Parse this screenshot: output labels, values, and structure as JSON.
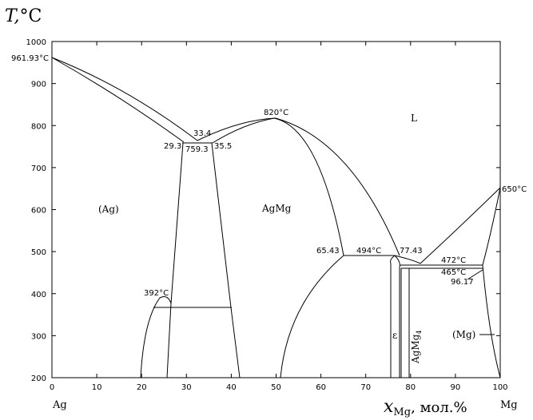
{
  "title": {
    "y_axis_title_main": "T,",
    "y_axis_title_unit": "°C",
    "x_axis_title_var": "x",
    "x_axis_title_sub": "Mg",
    "x_axis_title_unit": ", мол.%",
    "x_left_element": "Ag",
    "x_right_element": "Mg"
  },
  "axes": {
    "x_ticks": [
      "0",
      "10",
      "20",
      "30",
      "40",
      "50",
      "60",
      "70",
      "80",
      "90",
      "100"
    ],
    "y_ticks": [
      "200",
      "300",
      "400",
      "500",
      "600",
      "700",
      "800",
      "900",
      "1000"
    ],
    "x_range": [
      0,
      100
    ],
    "y_range": [
      200,
      1000
    ]
  },
  "annotations": {
    "ag_melt": "961.93°C",
    "eut1_left": "29.3",
    "eut1_mid": "33.4",
    "eut1_temp": "759.3",
    "eut1_right": "35.5",
    "agmg_melt": "820°C",
    "per_392": "392°C",
    "eut2_left": "65.43",
    "eut2_temp": "494°C",
    "eut2_right": "77.43",
    "eut3_temp": "472°C",
    "eut3_lower": "465°C",
    "eut3_comp": "96.17",
    "mg_melt": "650°C"
  },
  "phases": {
    "liquid": "L",
    "ag_solid": "(Ag)",
    "agmg": "AgMg",
    "epsilon": "ε",
    "agmg4_main": "AgMg",
    "agmg4_sub": "4",
    "mg_solid": "(Mg)"
  },
  "colors": {
    "line": "#000000",
    "background": "#ffffff"
  }
}
